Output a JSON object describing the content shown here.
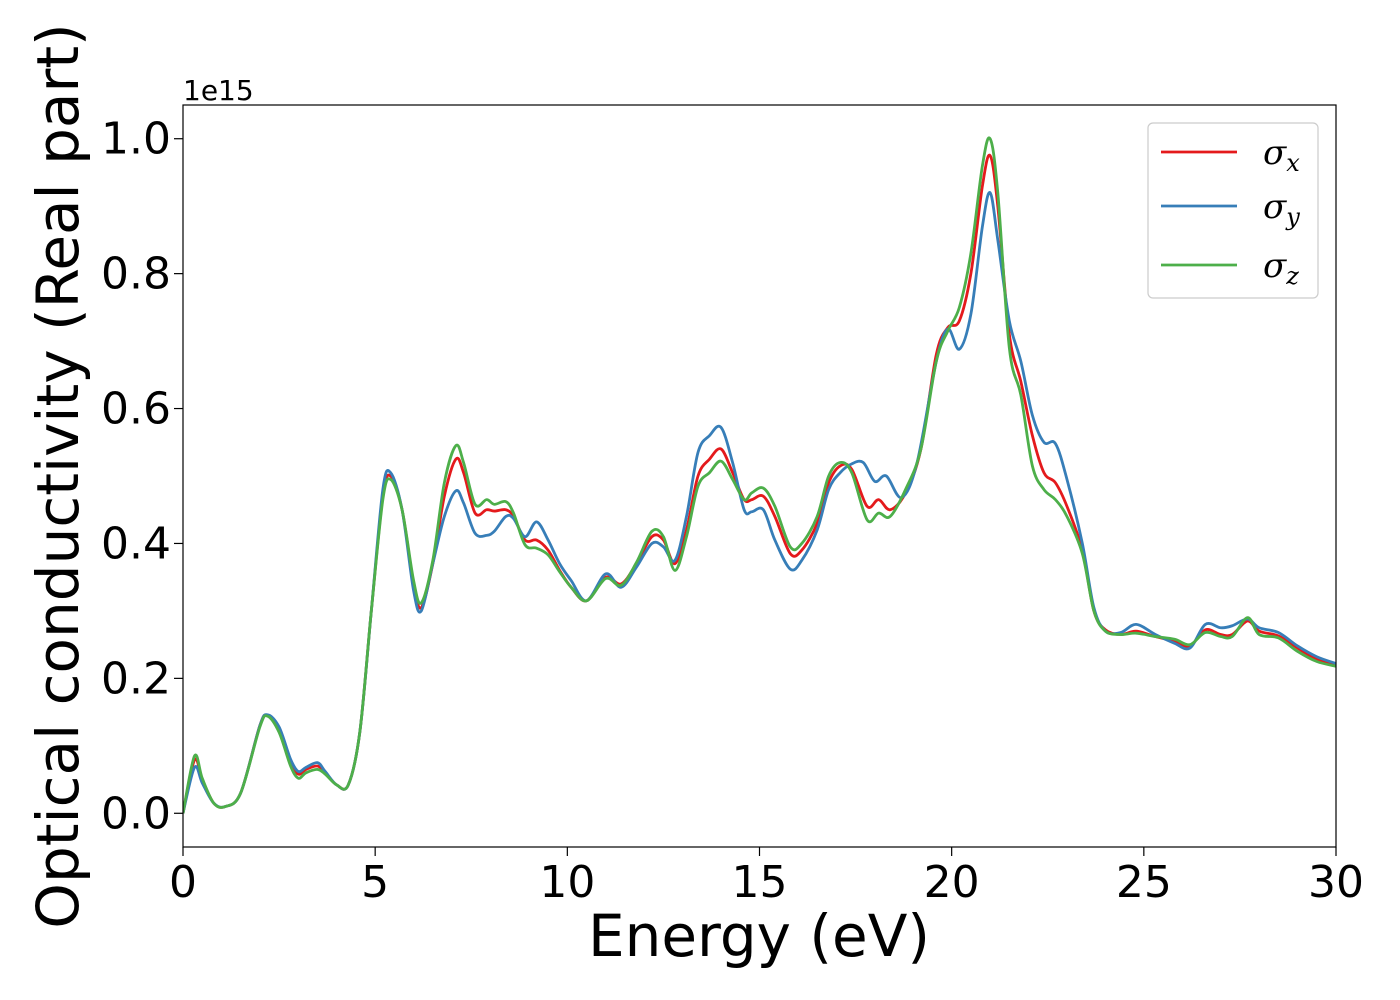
{
  "chart_data": {
    "type": "line",
    "xlabel": "Energy (eV)",
    "ylabel": "Optical conductivity (Real part)",
    "y_offset_label": "1e15",
    "xlim": [
      0,
      30
    ],
    "ylim": [
      -0.05,
      1.05
    ],
    "x_ticks": [
      0,
      5,
      10,
      15,
      20,
      25,
      30
    ],
    "x_tick_labels": [
      "0",
      "5",
      "10",
      "15",
      "20",
      "25",
      "30"
    ],
    "y_ticks": [
      0.0,
      0.2,
      0.4,
      0.6,
      0.8,
      1.0
    ],
    "y_tick_labels": [
      "0.0",
      "0.2",
      "0.4",
      "0.6",
      "0.8",
      "1.0"
    ],
    "grid": false,
    "legend_position": "top-right",
    "series": [
      {
        "name": "σx",
        "symbol": "σ",
        "subscript": "x",
        "color": "#e41a1c",
        "points": [
          [
            0,
            0
          ],
          [
            0.3,
            0.079
          ],
          [
            0.5,
            0.05
          ],
          [
            0.8,
            0.015
          ],
          [
            1.1,
            0.01
          ],
          [
            1.5,
            0.03
          ],
          [
            2.0,
            0.13
          ],
          [
            2.2,
            0.145
          ],
          [
            2.5,
            0.125
          ],
          [
            2.8,
            0.075
          ],
          [
            3.0,
            0.058
          ],
          [
            3.2,
            0.065
          ],
          [
            3.5,
            0.07
          ],
          [
            3.7,
            0.06
          ],
          [
            4.0,
            0.042
          ],
          [
            4.3,
            0.042
          ],
          [
            4.6,
            0.12
          ],
          [
            4.9,
            0.3
          ],
          [
            5.2,
            0.47
          ],
          [
            5.4,
            0.5
          ],
          [
            5.7,
            0.45
          ],
          [
            6.0,
            0.34
          ],
          [
            6.2,
            0.305
          ],
          [
            6.5,
            0.37
          ],
          [
            6.8,
            0.47
          ],
          [
            7.1,
            0.525
          ],
          [
            7.3,
            0.505
          ],
          [
            7.6,
            0.445
          ],
          [
            7.9,
            0.45
          ],
          [
            8.1,
            0.448
          ],
          [
            8.4,
            0.45
          ],
          [
            8.6,
            0.44
          ],
          [
            8.9,
            0.405
          ],
          [
            9.2,
            0.405
          ],
          [
            9.5,
            0.39
          ],
          [
            9.8,
            0.36
          ],
          [
            10.1,
            0.335
          ],
          [
            10.5,
            0.315
          ],
          [
            11.0,
            0.35
          ],
          [
            11.4,
            0.34
          ],
          [
            11.8,
            0.37
          ],
          [
            12.2,
            0.41
          ],
          [
            12.5,
            0.405
          ],
          [
            12.8,
            0.37
          ],
          [
            13.1,
            0.42
          ],
          [
            13.4,
            0.5
          ],
          [
            13.7,
            0.525
          ],
          [
            14.0,
            0.54
          ],
          [
            14.3,
            0.505
          ],
          [
            14.6,
            0.465
          ],
          [
            14.8,
            0.465
          ],
          [
            15.1,
            0.47
          ],
          [
            15.4,
            0.44
          ],
          [
            15.8,
            0.385
          ],
          [
            16.1,
            0.39
          ],
          [
            16.5,
            0.43
          ],
          [
            16.8,
            0.49
          ],
          [
            17.1,
            0.515
          ],
          [
            17.4,
            0.51
          ],
          [
            17.8,
            0.455
          ],
          [
            18.1,
            0.465
          ],
          [
            18.4,
            0.45
          ],
          [
            18.8,
            0.475
          ],
          [
            19.2,
            0.54
          ],
          [
            19.6,
            0.68
          ],
          [
            19.9,
            0.72
          ],
          [
            20.2,
            0.73
          ],
          [
            20.5,
            0.8
          ],
          [
            20.8,
            0.93
          ],
          [
            21.0,
            0.975
          ],
          [
            21.2,
            0.9
          ],
          [
            21.5,
            0.71
          ],
          [
            21.8,
            0.64
          ],
          [
            22.1,
            0.56
          ],
          [
            22.4,
            0.505
          ],
          [
            22.7,
            0.49
          ],
          [
            23.0,
            0.455
          ],
          [
            23.4,
            0.39
          ],
          [
            23.7,
            0.3
          ],
          [
            24.0,
            0.272
          ],
          [
            24.4,
            0.265
          ],
          [
            24.8,
            0.27
          ],
          [
            25.3,
            0.262
          ],
          [
            25.8,
            0.255
          ],
          [
            26.2,
            0.248
          ],
          [
            26.6,
            0.272
          ],
          [
            27.0,
            0.265
          ],
          [
            27.3,
            0.265
          ],
          [
            27.7,
            0.285
          ],
          [
            28.0,
            0.27
          ],
          [
            28.5,
            0.263
          ],
          [
            29.0,
            0.245
          ],
          [
            29.5,
            0.228
          ],
          [
            30.0,
            0.22
          ]
        ]
      },
      {
        "name": "σy",
        "symbol": "σ",
        "subscript": "y",
        "color": "#377eb8",
        "points": [
          [
            0,
            0
          ],
          [
            0.3,
            0.068
          ],
          [
            0.5,
            0.045
          ],
          [
            0.8,
            0.015
          ],
          [
            1.1,
            0.01
          ],
          [
            1.5,
            0.03
          ],
          [
            2.0,
            0.13
          ],
          [
            2.2,
            0.146
          ],
          [
            2.5,
            0.128
          ],
          [
            2.8,
            0.08
          ],
          [
            3.0,
            0.062
          ],
          [
            3.2,
            0.068
          ],
          [
            3.5,
            0.075
          ],
          [
            3.7,
            0.062
          ],
          [
            4.0,
            0.042
          ],
          [
            4.3,
            0.042
          ],
          [
            4.6,
            0.12
          ],
          [
            4.9,
            0.3
          ],
          [
            5.2,
            0.48
          ],
          [
            5.4,
            0.505
          ],
          [
            5.7,
            0.45
          ],
          [
            6.0,
            0.33
          ],
          [
            6.2,
            0.3
          ],
          [
            6.5,
            0.37
          ],
          [
            6.8,
            0.44
          ],
          [
            7.1,
            0.478
          ],
          [
            7.3,
            0.46
          ],
          [
            7.6,
            0.415
          ],
          [
            7.9,
            0.412
          ],
          [
            8.1,
            0.418
          ],
          [
            8.4,
            0.44
          ],
          [
            8.6,
            0.437
          ],
          [
            8.9,
            0.41
          ],
          [
            9.2,
            0.432
          ],
          [
            9.5,
            0.405
          ],
          [
            9.8,
            0.37
          ],
          [
            10.1,
            0.345
          ],
          [
            10.5,
            0.315
          ],
          [
            11.0,
            0.355
          ],
          [
            11.4,
            0.335
          ],
          [
            11.8,
            0.365
          ],
          [
            12.2,
            0.4
          ],
          [
            12.5,
            0.395
          ],
          [
            12.8,
            0.375
          ],
          [
            13.1,
            0.44
          ],
          [
            13.4,
            0.535
          ],
          [
            13.7,
            0.56
          ],
          [
            14.0,
            0.572
          ],
          [
            14.3,
            0.52
          ],
          [
            14.6,
            0.45
          ],
          [
            14.8,
            0.447
          ],
          [
            15.1,
            0.45
          ],
          [
            15.4,
            0.405
          ],
          [
            15.8,
            0.362
          ],
          [
            16.1,
            0.375
          ],
          [
            16.5,
            0.42
          ],
          [
            16.8,
            0.48
          ],
          [
            17.1,
            0.505
          ],
          [
            17.4,
            0.518
          ],
          [
            17.7,
            0.52
          ],
          [
            18.0,
            0.492
          ],
          [
            18.3,
            0.5
          ],
          [
            18.7,
            0.468
          ],
          [
            19.1,
            0.52
          ],
          [
            19.6,
            0.67
          ],
          [
            19.9,
            0.718
          ],
          [
            20.2,
            0.688
          ],
          [
            20.5,
            0.74
          ],
          [
            20.8,
            0.87
          ],
          [
            21.0,
            0.92
          ],
          [
            21.2,
            0.85
          ],
          [
            21.5,
            0.73
          ],
          [
            21.8,
            0.67
          ],
          [
            22.1,
            0.59
          ],
          [
            22.4,
            0.55
          ],
          [
            22.7,
            0.548
          ],
          [
            23.0,
            0.495
          ],
          [
            23.4,
            0.4
          ],
          [
            23.7,
            0.305
          ],
          [
            24.0,
            0.27
          ],
          [
            24.4,
            0.268
          ],
          [
            24.8,
            0.28
          ],
          [
            25.3,
            0.265
          ],
          [
            25.8,
            0.252
          ],
          [
            26.2,
            0.245
          ],
          [
            26.6,
            0.28
          ],
          [
            27.0,
            0.275
          ],
          [
            27.3,
            0.278
          ],
          [
            27.7,
            0.288
          ],
          [
            28.0,
            0.275
          ],
          [
            28.5,
            0.268
          ],
          [
            29.0,
            0.248
          ],
          [
            29.5,
            0.232
          ],
          [
            30.0,
            0.222
          ]
        ]
      },
      {
        "name": "σz",
        "symbol": "σ",
        "subscript": "z",
        "color": "#4daf4a",
        "points": [
          [
            0,
            0
          ],
          [
            0.3,
            0.085
          ],
          [
            0.5,
            0.052
          ],
          [
            0.8,
            0.015
          ],
          [
            1.1,
            0.01
          ],
          [
            1.5,
            0.03
          ],
          [
            2.0,
            0.128
          ],
          [
            2.2,
            0.144
          ],
          [
            2.5,
            0.12
          ],
          [
            2.8,
            0.07
          ],
          [
            3.0,
            0.052
          ],
          [
            3.2,
            0.06
          ],
          [
            3.5,
            0.065
          ],
          [
            3.7,
            0.058
          ],
          [
            4.0,
            0.042
          ],
          [
            4.3,
            0.042
          ],
          [
            4.6,
            0.12
          ],
          [
            4.9,
            0.3
          ],
          [
            5.2,
            0.465
          ],
          [
            5.4,
            0.495
          ],
          [
            5.7,
            0.45
          ],
          [
            6.0,
            0.345
          ],
          [
            6.2,
            0.312
          ],
          [
            6.5,
            0.375
          ],
          [
            6.8,
            0.49
          ],
          [
            7.1,
            0.545
          ],
          [
            7.3,
            0.52
          ],
          [
            7.6,
            0.458
          ],
          [
            7.9,
            0.465
          ],
          [
            8.1,
            0.458
          ],
          [
            8.4,
            0.462
          ],
          [
            8.6,
            0.445
          ],
          [
            8.9,
            0.398
          ],
          [
            9.2,
            0.393
          ],
          [
            9.5,
            0.383
          ],
          [
            9.8,
            0.358
          ],
          [
            10.1,
            0.335
          ],
          [
            10.5,
            0.315
          ],
          [
            11.0,
            0.348
          ],
          [
            11.4,
            0.338
          ],
          [
            11.8,
            0.372
          ],
          [
            12.2,
            0.418
          ],
          [
            12.5,
            0.41
          ],
          [
            12.8,
            0.36
          ],
          [
            13.1,
            0.41
          ],
          [
            13.4,
            0.485
          ],
          [
            13.7,
            0.505
          ],
          [
            14.0,
            0.522
          ],
          [
            14.3,
            0.495
          ],
          [
            14.6,
            0.465
          ],
          [
            14.8,
            0.475
          ],
          [
            15.1,
            0.482
          ],
          [
            15.4,
            0.455
          ],
          [
            15.8,
            0.395
          ],
          [
            16.1,
            0.4
          ],
          [
            16.5,
            0.44
          ],
          [
            16.8,
            0.5
          ],
          [
            17.1,
            0.52
          ],
          [
            17.4,
            0.505
          ],
          [
            17.8,
            0.435
          ],
          [
            18.1,
            0.445
          ],
          [
            18.4,
            0.44
          ],
          [
            18.8,
            0.48
          ],
          [
            19.2,
            0.54
          ],
          [
            19.6,
            0.67
          ],
          [
            19.9,
            0.715
          ],
          [
            20.2,
            0.75
          ],
          [
            20.5,
            0.83
          ],
          [
            20.8,
            0.96
          ],
          [
            21.0,
            1.0
          ],
          [
            21.2,
            0.92
          ],
          [
            21.5,
            0.69
          ],
          [
            21.8,
            0.62
          ],
          [
            22.1,
            0.515
          ],
          [
            22.4,
            0.48
          ],
          [
            22.7,
            0.465
          ],
          [
            23.0,
            0.44
          ],
          [
            23.4,
            0.385
          ],
          [
            23.7,
            0.3
          ],
          [
            24.0,
            0.27
          ],
          [
            24.4,
            0.265
          ],
          [
            24.8,
            0.267
          ],
          [
            25.3,
            0.262
          ],
          [
            25.8,
            0.258
          ],
          [
            26.2,
            0.25
          ],
          [
            26.6,
            0.268
          ],
          [
            27.0,
            0.262
          ],
          [
            27.3,
            0.262
          ],
          [
            27.7,
            0.29
          ],
          [
            28.0,
            0.265
          ],
          [
            28.5,
            0.26
          ],
          [
            29.0,
            0.24
          ],
          [
            29.5,
            0.225
          ],
          [
            30.0,
            0.218
          ]
        ]
      }
    ]
  }
}
